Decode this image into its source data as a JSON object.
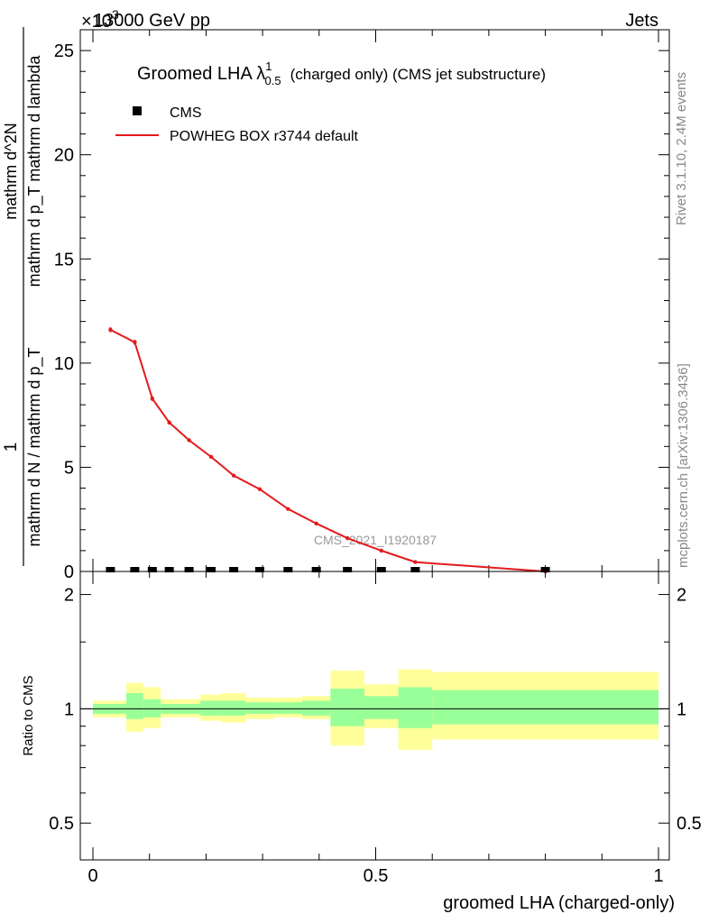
{
  "header": {
    "left": "13000 GeV pp",
    "right": "Jets",
    "exponent": "×10",
    "exponent_power": "3"
  },
  "side_labels": {
    "rivet": "Rivet 3.1.10,  2.4M events",
    "mcplots": "mcplots.cern.ch [arXiv:1306.3436]"
  },
  "watermark": "CMS_2021_I1920187",
  "chart_data": [
    {
      "type": "line",
      "title": "Groomed LHA",
      "title_symbol": "λ",
      "title_sup": "1",
      "title_sub": "0.5",
      "title_suffix": "(charged only) (CMS jet substructure)",
      "ylabel_numerator": "1",
      "ylabel_denominator": "mathrm d N / mathrm d p_T",
      "ylabel_fraction_top": "mathrm d^2N",
      "ylabel_fraction_bottom": "mathrm d p_T mathrm d lambda",
      "xlim": [
        0,
        1
      ],
      "ylim": [
        0,
        26
      ],
      "yticks": [
        0,
        5,
        10,
        15,
        20,
        25
      ],
      "ytick_labels": [
        "0",
        "5",
        "10",
        "15",
        "20",
        "25"
      ],
      "legend_position": "top-left",
      "series": [
        {
          "name": "CMS",
          "marker": "square",
          "color": "#000000",
          "x": [
            0.031,
            0.074,
            0.105,
            0.135,
            0.17,
            0.209,
            0.249,
            0.295,
            0.345,
            0.395,
            0.45,
            0.51,
            0.57,
            0.8
          ],
          "y": [
            0,
            0,
            0,
            0,
            0,
            0,
            0,
            0,
            0,
            0,
            0,
            0,
            0,
            0
          ]
        },
        {
          "name": "POWHEG BOX r3744 default",
          "marker": "line",
          "color": "#e41a1c",
          "x": [
            0.031,
            0.074,
            0.105,
            0.135,
            0.17,
            0.209,
            0.249,
            0.295,
            0.345,
            0.395,
            0.45,
            0.51,
            0.57,
            0.8
          ],
          "y": [
            11.6,
            11.0,
            8.3,
            7.15,
            6.3,
            5.5,
            4.6,
            3.95,
            3.0,
            2.3,
            1.6,
            1.0,
            0.45,
            0.0
          ],
          "yerr": [
            0.12,
            0.12,
            0.12,
            0.1,
            0.08,
            0.08,
            0.07,
            0.06,
            0.05,
            0.05,
            0.04,
            0.04,
            0.03,
            0.02
          ]
        }
      ]
    },
    {
      "type": "area",
      "ylabel": "Ratio to CMS",
      "xlabel": "groomed LHA (charged-only)",
      "xlim": [
        0,
        1
      ],
      "ylim": [
        0.4,
        2.3
      ],
      "xticks": [
        0,
        0.5,
        1
      ],
      "xtick_labels": [
        "0",
        "0.5",
        "1"
      ],
      "yticks": [
        0.5,
        1,
        2
      ],
      "ytick_labels": [
        "0.5",
        "1",
        "2"
      ],
      "bins": [
        {
          "x0": 0.0,
          "x1": 0.059,
          "green": [
            0.97,
            1.03
          ],
          "yellow": [
            0.95,
            1.05
          ]
        },
        {
          "x0": 0.059,
          "x1": 0.089,
          "green": [
            0.94,
            1.1
          ],
          "yellow": [
            0.87,
            1.17
          ]
        },
        {
          "x0": 0.089,
          "x1": 0.12,
          "green": [
            0.95,
            1.06
          ],
          "yellow": [
            0.89,
            1.14
          ]
        },
        {
          "x0": 0.12,
          "x1": 0.15,
          "green": [
            0.97,
            1.03
          ],
          "yellow": [
            0.95,
            1.06
          ]
        },
        {
          "x0": 0.15,
          "x1": 0.19,
          "green": [
            0.97,
            1.03
          ],
          "yellow": [
            0.95,
            1.06
          ]
        },
        {
          "x0": 0.19,
          "x1": 0.228,
          "green": [
            0.96,
            1.05
          ],
          "yellow": [
            0.93,
            1.09
          ]
        },
        {
          "x0": 0.228,
          "x1": 0.27,
          "green": [
            0.96,
            1.05
          ],
          "yellow": [
            0.92,
            1.1
          ]
        },
        {
          "x0": 0.27,
          "x1": 0.32,
          "green": [
            0.97,
            1.04
          ],
          "yellow": [
            0.94,
            1.07
          ]
        },
        {
          "x0": 0.32,
          "x1": 0.37,
          "green": [
            0.97,
            1.04
          ],
          "yellow": [
            0.95,
            1.07
          ]
        },
        {
          "x0": 0.37,
          "x1": 0.42,
          "green": [
            0.96,
            1.05
          ],
          "yellow": [
            0.94,
            1.08
          ]
        },
        {
          "x0": 0.42,
          "x1": 0.48,
          "green": [
            0.9,
            1.13
          ],
          "yellow": [
            0.8,
            1.26
          ]
        },
        {
          "x0": 0.48,
          "x1": 0.54,
          "green": [
            0.94,
            1.08
          ],
          "yellow": [
            0.89,
            1.16
          ]
        },
        {
          "x0": 0.54,
          "x1": 0.6,
          "green": [
            0.89,
            1.14
          ],
          "yellow": [
            0.78,
            1.27
          ]
        },
        {
          "x0": 0.6,
          "x1": 1.0,
          "green": [
            0.91,
            1.12
          ],
          "yellow": [
            0.83,
            1.25
          ]
        }
      ]
    }
  ]
}
